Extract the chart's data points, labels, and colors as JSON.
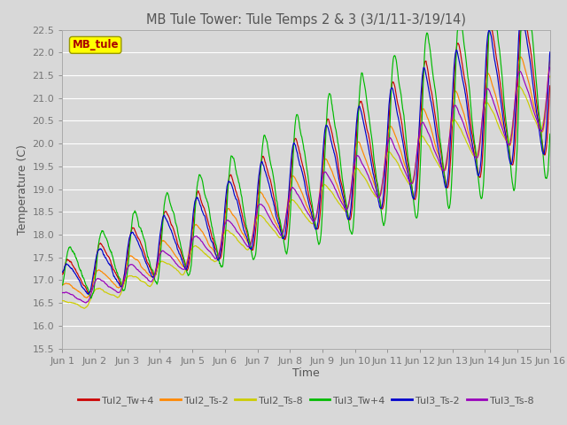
{
  "title": "MB Tule Tower: Tule Temps 2 & 3 (3/1/11-3/19/14)",
  "xlabel": "Time",
  "ylabel": "Temperature (C)",
  "ylim": [
    15.5,
    22.5
  ],
  "yticks": [
    15.5,
    16.0,
    16.5,
    17.0,
    17.5,
    18.0,
    18.5,
    19.0,
    19.5,
    20.0,
    20.5,
    21.0,
    21.5,
    22.0,
    22.5
  ],
  "x_labels": [
    "Jun 1",
    "Jun 2",
    "Jun 3",
    "Jun 4",
    "Jun 5",
    "Jun 6",
    "Jun 7",
    "Jun 8",
    "Jun 9",
    "Jun 10",
    "Jun 11",
    "Jun 12",
    "Jun 13",
    "Jun 14",
    "Jun 15",
    "Jun 16"
  ],
  "legend_label": "MB_tule",
  "legend_box_facecolor": "#ffff00",
  "legend_box_edgecolor": "#999900",
  "legend_text_color": "#aa0000",
  "background_color": "#d8d8d8",
  "plot_bg_color": "#d8d8d8",
  "grid_color": "#ffffff",
  "series": [
    {
      "label": "Tul2_Tw+4",
      "color": "#cc0000"
    },
    {
      "label": "Tul2_Ts-2",
      "color": "#ff8800"
    },
    {
      "label": "Tul2_Ts-8",
      "color": "#cccc00"
    },
    {
      "label": "Tul3_Tw+4",
      "color": "#00bb00"
    },
    {
      "label": "Tul3_Ts-2",
      "color": "#0000cc"
    },
    {
      "label": "Tul3_Ts-8",
      "color": "#9900bb"
    }
  ]
}
